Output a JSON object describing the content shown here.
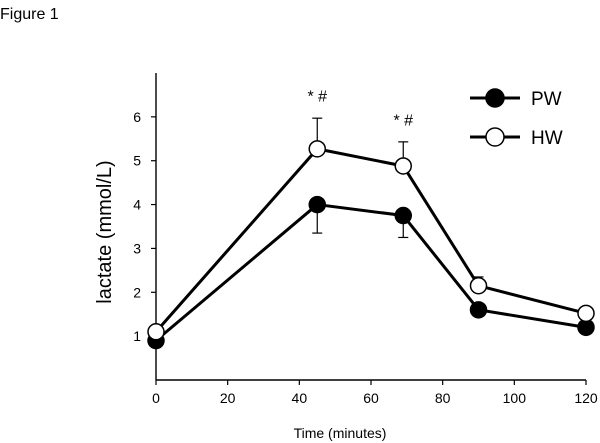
{
  "figure": {
    "label": "Figure 1"
  },
  "chart_data": {
    "type": "line",
    "xlabel": "Time (minutes)",
    "ylabel": "lactate (mmol/L)",
    "xlim": [
      0,
      120
    ],
    "ylim": [
      0,
      7
    ],
    "x_ticks": [
      "0",
      "20",
      "40",
      "60",
      "80",
      "100",
      "120"
    ],
    "y_ticks": [
      "1",
      "2",
      "3",
      "4",
      "5",
      "6"
    ],
    "grid": false,
    "legend_position": "top-right",
    "series": [
      {
        "name": "PW",
        "marker": "filled-circle",
        "color": "#000000",
        "x": [
          0,
          45,
          69,
          90,
          120
        ],
        "y": [
          0.9,
          4.0,
          3.75,
          1.6,
          1.2
        ],
        "error": [
          null,
          0.65,
          0.5,
          null,
          null
        ],
        "error_direction": "down"
      },
      {
        "name": "HW",
        "marker": "open-circle",
        "color": "#000000",
        "x": [
          0,
          45,
          69,
          90,
          120
        ],
        "y": [
          1.1,
          5.27,
          4.88,
          2.15,
          1.52
        ],
        "error": [
          null,
          0.7,
          0.55,
          0.2,
          null
        ],
        "error_direction": "up"
      }
    ],
    "annotations": [
      {
        "text": "* #",
        "x": 45,
        "y": 6.35
      },
      {
        "text": "* #",
        "x": 69,
        "y": 5.8
      }
    ]
  }
}
